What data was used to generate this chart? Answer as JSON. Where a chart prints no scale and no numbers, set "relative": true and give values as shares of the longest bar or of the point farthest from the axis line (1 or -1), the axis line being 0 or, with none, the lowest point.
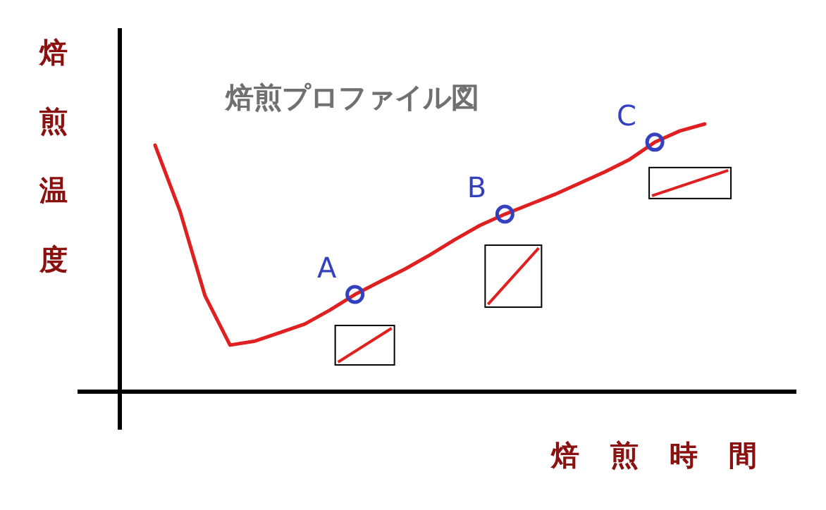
{
  "chart_data": {
    "type": "line",
    "title": "焙煎プロファイル図",
    "xlabel": "焙煎時間",
    "ylabel": "焙煎温度",
    "relative": true,
    "categories": [
      null,
      null,
      null,
      null,
      null,
      null,
      null,
      null,
      null,
      null,
      null,
      null,
      null,
      null,
      null,
      null,
      null,
      null,
      null,
      null,
      null,
      null,
      null
    ],
    "series": [
      {
        "color": "#e02020",
        "values": [
          0.921,
          0.674,
          0.358,
          0.174,
          0.189,
          0.221,
          0.253,
          0.305,
          0.363,
          0.411,
          0.458,
          0.511,
          0.568,
          0.621,
          0.663,
          0.7,
          0.737,
          0.779,
          0.821,
          0.868,
          0.932,
          0.974,
          1.0
        ]
      }
    ],
    "annotations": [
      "A",
      "B",
      "C"
    ]
  }
}
